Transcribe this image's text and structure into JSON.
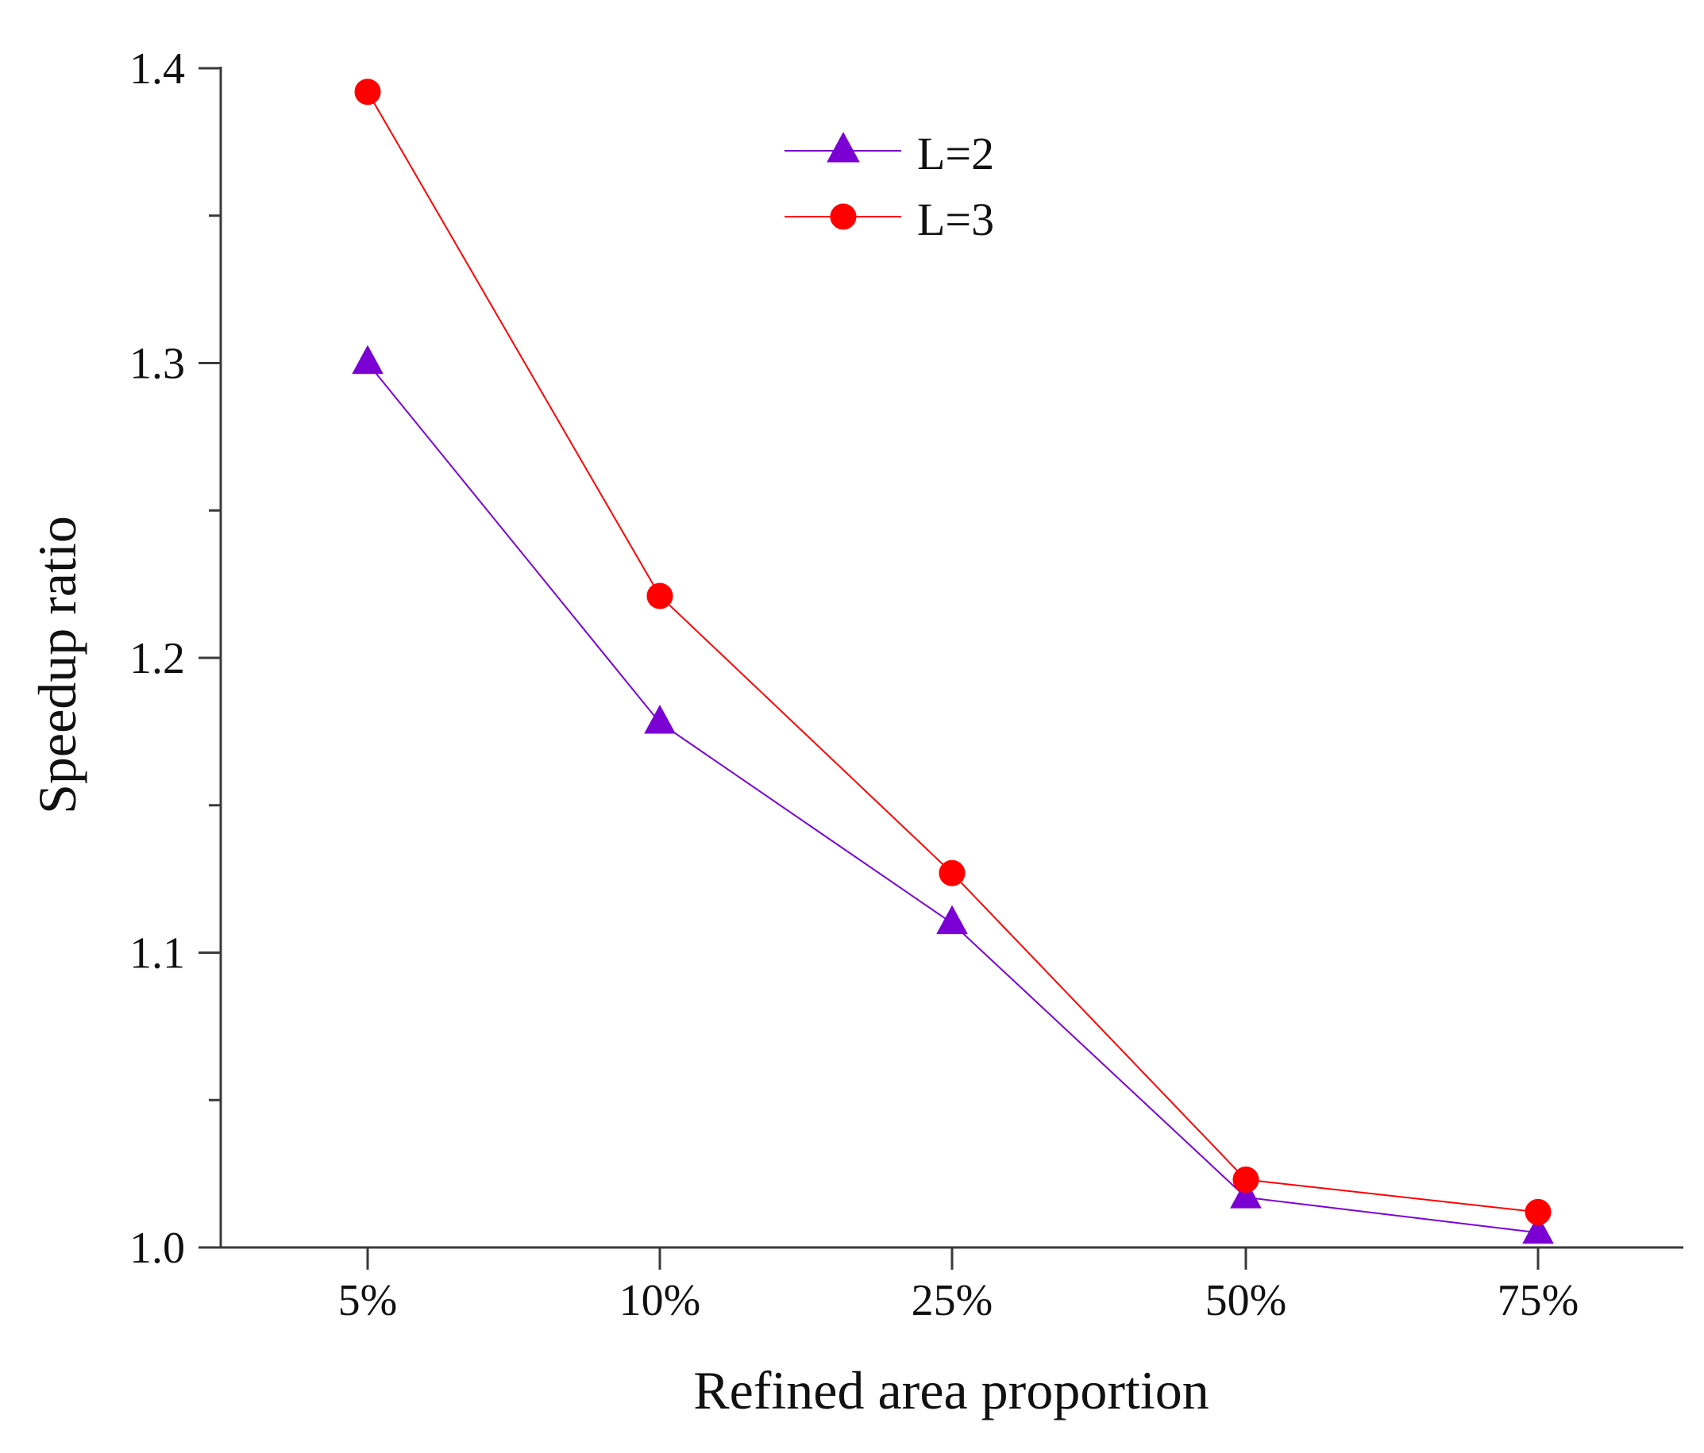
{
  "chart_data": {
    "type": "line",
    "title": "",
    "xlabel": "Refined area proportion",
    "ylabel": "Speedup ratio",
    "categories": [
      "5%",
      "10%",
      "25%",
      "50%",
      "75%"
    ],
    "ylim": [
      1.0,
      1.4
    ],
    "yticks": [
      "1.0",
      "1.1",
      "1.2",
      "1.3",
      "1.4"
    ],
    "yticks_values": [
      1.0,
      1.1,
      1.2,
      1.3,
      1.4
    ],
    "minor_ytick_values": [
      1.05,
      1.15,
      1.25,
      1.35
    ],
    "grid": false,
    "legend_position": "top-center",
    "series": [
      {
        "name": "L=2",
        "marker": "triangle",
        "color": "#7B00D4",
        "values": [
          1.3,
          1.178,
          1.11,
          1.017,
          1.005
        ]
      },
      {
        "name": "L=3",
        "marker": "circle",
        "color": "#FF0000",
        "values": [
          1.392,
          1.221,
          1.127,
          1.023,
          1.012
        ]
      }
    ]
  }
}
